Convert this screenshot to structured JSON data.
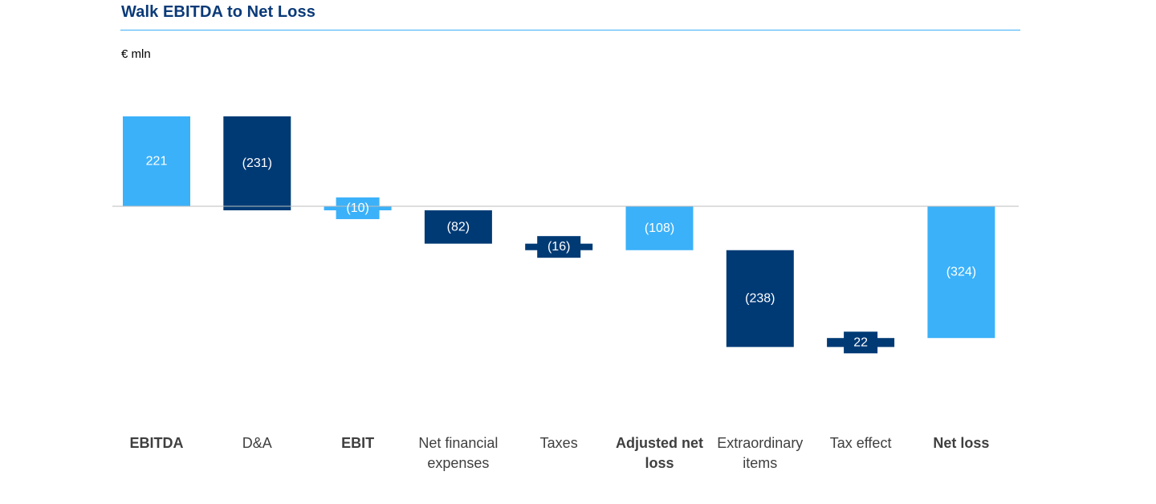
{
  "header": {
    "title": "Walk EBITDA to Net Loss",
    "unit": "€ mln"
  },
  "colors": {
    "total": "#3bb1f9",
    "delta": "#003a75",
    "label": "#ffffff",
    "category": "#3f3f3f",
    "baseline": "#bdbdbd",
    "rule": "#3bb0f5"
  },
  "chart_data": {
    "type": "bar",
    "subtype": "waterfall",
    "title": "Walk EBITDA to Net Loss",
    "ylabel": "€ mln",
    "categories": [
      {
        "lines": [
          "EBITDA"
        ],
        "bold": true
      },
      {
        "lines": [
          "D&A"
        ],
        "bold": false
      },
      {
        "lines": [
          "EBIT"
        ],
        "bold": true
      },
      {
        "lines": [
          "Net financial",
          "expenses"
        ],
        "bold": false
      },
      {
        "lines": [
          "Taxes"
        ],
        "bold": false
      },
      {
        "lines": [
          "Adjusted net",
          "loss"
        ],
        "bold": true
      },
      {
        "lines": [
          "Extraordinary",
          "items"
        ],
        "bold": false
      },
      {
        "lines": [
          "Tax effect"
        ],
        "bold": false
      },
      {
        "lines": [
          "Net loss"
        ],
        "bold": true
      }
    ],
    "bars": [
      {
        "kind": "total",
        "start": 0,
        "end": 221,
        "label": "221"
      },
      {
        "kind": "delta",
        "start": 221,
        "end": -10,
        "label": "(231)"
      },
      {
        "kind": "total",
        "start": 0,
        "end": -10,
        "label": "(10)"
      },
      {
        "kind": "delta",
        "start": -10,
        "end": -92,
        "label": "(82)"
      },
      {
        "kind": "delta",
        "start": -92,
        "end": -108,
        "label": "(16)"
      },
      {
        "kind": "total",
        "start": 0,
        "end": -108,
        "label": "(108)"
      },
      {
        "kind": "delta",
        "start": -108,
        "end": -346,
        "label": "(238)"
      },
      {
        "kind": "delta",
        "start": -346,
        "end": -324,
        "label": "22"
      },
      {
        "kind": "total",
        "start": 0,
        "end": -324,
        "label": "(324)"
      }
    ],
    "ylim": [
      -400,
      250
    ],
    "grid": false,
    "legend": "none"
  }
}
